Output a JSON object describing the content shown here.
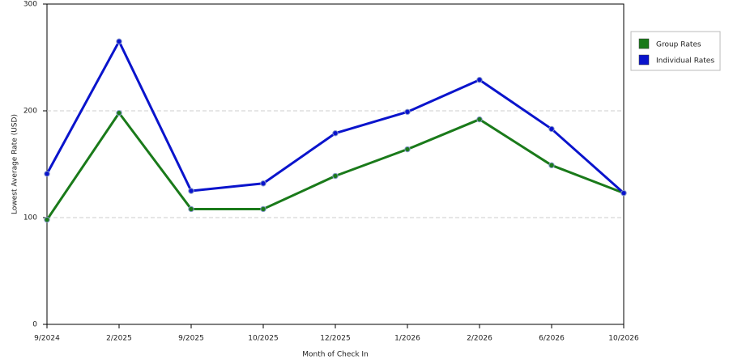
{
  "chart_data": {
    "type": "line",
    "x_label": "Month of Check In",
    "y_label": "Lowest Average Rate (USD)",
    "categories": [
      "9/2024",
      "2/2025",
      "9/2025",
      "10/2025",
      "12/2025",
      "1/2026",
      "2/2026",
      "6/2026",
      "10/2026"
    ],
    "series": [
      {
        "name": "Group Rates",
        "color": "#1a7a1a",
        "values": [
          98,
          198,
          108,
          108,
          139,
          164,
          192,
          149,
          123
        ]
      },
      {
        "name": "Individual Rates",
        "color": "#0a14cc",
        "values": [
          141,
          265,
          125,
          132,
          179,
          199,
          229,
          183,
          123
        ]
      }
    ],
    "ylim": [
      0,
      300
    ],
    "yticks": [
      0,
      100,
      200,
      300
    ],
    "grid": true,
    "legend": "right"
  }
}
